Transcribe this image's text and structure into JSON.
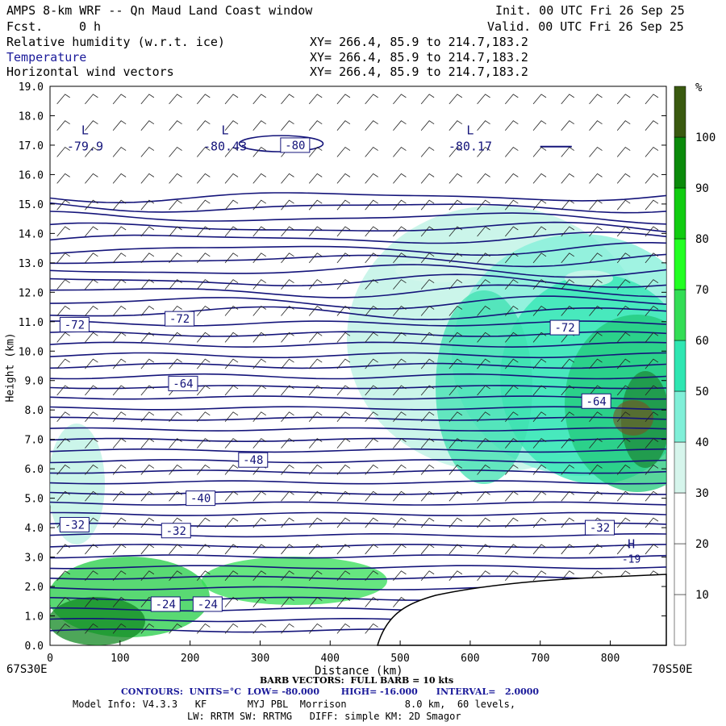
{
  "header": {
    "title": "AMPS 8-km WRF -- Qn Maud Land Coast window",
    "fcst_label": "Fcst.",
    "fcst_value": "0 h",
    "init": "Init. 00 UTC Fri 26 Sep 25",
    "valid": "Valid. 00 UTC Fri 26 Sep 25",
    "fields": [
      {
        "name": "Relative humidity (w.r.t. ice)",
        "xy": "XY= 266.4, 85.9 to 214.7,183.2"
      },
      {
        "name": "Temperature",
        "xy": "XY= 266.4, 85.9 to 214.7,183.2"
      },
      {
        "name": "Horizontal wind vectors",
        "xy": "XY= 266.4, 85.9 to 214.7,183.2"
      }
    ]
  },
  "colorbar": {
    "unit": "%",
    "ticks": [
      "10",
      "20",
      "30",
      "40",
      "50",
      "60",
      "70",
      "80",
      "90",
      "100"
    ],
    "colors": [
      "#ffffff",
      "#ffffff",
      "#ffffff",
      "#d6f5ec",
      "#80efd8",
      "#2fe6b2",
      "#33dd55",
      "#22ff22",
      "#11cc11",
      "#0b8a0b",
      "#3a5a10"
    ]
  },
  "footer": {
    "left_end": "67S30E",
    "right_end": "70S50E",
    "barb": "BARB VECTORS:  FULL BARB = 10 kts",
    "contours": "CONTOURS:  UNITS=°C  LOW= -80.000       HIGH= -16.000      INTERVAL=   2.0000",
    "model1": "Model Info: V4.3.3   KF       MYJ PBL  Morrison          8.0 km,  60 levels,",
    "model2": "LW: RRTM SW: RRTMG   DIFF: simple KM: 2D Smagor"
  },
  "chart_data": {
    "type": "heatmap",
    "title": "AMPS 8-km WRF -- Qn Maud Land Coast window",
    "xlabel": "Distance (km)",
    "ylabel": "Height (km)",
    "x_ticks": [
      0,
      100,
      200,
      300,
      400,
      500,
      600,
      700,
      800
    ],
    "y_ticks": [
      0.0,
      1.0,
      2.0,
      3.0,
      4.0,
      5.0,
      6.0,
      7.0,
      8.0,
      9.0,
      10.0,
      11.0,
      12.0,
      13.0,
      14.0,
      15.0,
      16.0,
      17.0,
      18.0,
      19.0
    ],
    "xlim": [
      0,
      880
    ],
    "ylim": [
      0,
      19
    ],
    "contour_labels": [
      {
        "text": "-72",
        "x": 35,
        "y": 10.9
      },
      {
        "text": "-72",
        "x": 185,
        "y": 11.1
      },
      {
        "text": "-72",
        "x": 735,
        "y": 10.8
      },
      {
        "text": "-80",
        "x": 350,
        "y": 17.0
      },
      {
        "text": "-64",
        "x": 190,
        "y": 8.9
      },
      {
        "text": "-64",
        "x": 780,
        "y": 8.3
      },
      {
        "text": "-48",
        "x": 290,
        "y": 6.3
      },
      {
        "text": "-40",
        "x": 215,
        "y": 5.0
      },
      {
        "text": "-32",
        "x": 35,
        "y": 4.1
      },
      {
        "text": "-32",
        "x": 180,
        "y": 3.9
      },
      {
        "text": "-32",
        "x": 785,
        "y": 4.0
      },
      {
        "text": "-24",
        "x": 225,
        "y": 1.4
      },
      {
        "text": "-24",
        "x": 165,
        "y": 1.4
      }
    ],
    "lows": [
      {
        "label": "L",
        "value": "-79.9",
        "x": 50,
        "y": 17.2
      },
      {
        "label": "L",
        "value": "-80.43",
        "x": 250,
        "y": 17.2
      },
      {
        "label": "L",
        "value": "-80.17",
        "x": 600,
        "y": 17.2
      }
    ],
    "highs": [
      {
        "label": "H",
        "value": "-19",
        "x": 830,
        "y": 3.2
      }
    ]
  }
}
